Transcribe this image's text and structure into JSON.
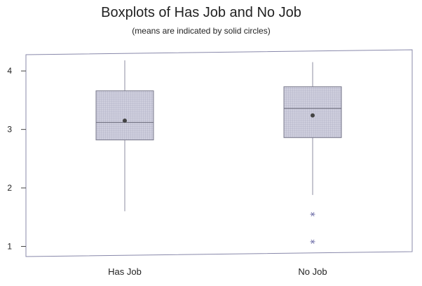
{
  "chart_data": {
    "type": "boxplot",
    "title": "Boxplots of Has Job and No Job",
    "subtitle": "(means are indicated by solid circles)",
    "xlabel": "",
    "ylabel": "",
    "ylim": [
      0.85,
      4.35
    ],
    "yticks": [
      "1",
      "2",
      "3",
      "4"
    ],
    "grid": false,
    "legend": "none",
    "categories": [
      "Has Job",
      "No Job"
    ],
    "series": [
      {
        "category": "Has Job",
        "whisker_low": 1.6,
        "q1": 2.82,
        "median": 3.12,
        "q3": 3.66,
        "whisker_high": 4.18,
        "mean": 3.15,
        "outliers": []
      },
      {
        "category": "No Job",
        "whisker_low": 1.88,
        "q1": 2.86,
        "median": 3.36,
        "q3": 3.73,
        "whisker_high": 4.15,
        "mean": 3.24,
        "outliers": [
          1.55,
          1.08
        ]
      }
    ],
    "colors": {
      "box_fill": "#c4c4d6",
      "box_stroke": "#7a7a8c",
      "whisker": "#8c8ca0",
      "median": "#6a6a7a",
      "mean": "#444444",
      "outlier": "#7c7cb0",
      "frame": "#8888aa"
    }
  }
}
